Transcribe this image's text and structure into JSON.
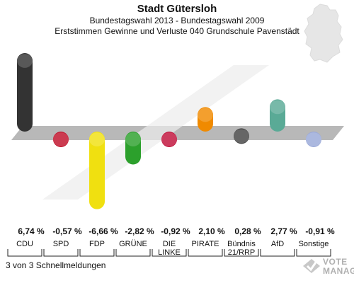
{
  "header": {
    "title": "Stadt Gütersloh",
    "subtitle1": "Bundestagswahl 2013 - Bundestagswahl 2009",
    "subtitle2": "Erststimmen Gewinne und Verluste 040 Grundschule Pavenstädt"
  },
  "footer": {
    "status": "3 von 3 Schnellmeldungen"
  },
  "logo": {
    "line1": "VOTE",
    "line2": "MANAGER"
  },
  "chart_data": {
    "type": "bar",
    "title": "Erststimmen Gewinne und Verluste 040 Grundschule Pavenstädt",
    "categories": [
      "CDU",
      "SPD",
      "FDP",
      "GRÜNE",
      "DIE LINKE",
      "PIRATE",
      "Bündnis 21/RRP",
      "AfD",
      "Sonstige"
    ],
    "category_lines": [
      [
        "CDU"
      ],
      [
        "SPD"
      ],
      [
        "FDP"
      ],
      [
        "GRÜNE"
      ],
      [
        "DIE",
        "LINKE"
      ],
      [
        "PIRATE"
      ],
      [
        "Bündnis",
        "21/RRP"
      ],
      [
        "AfD"
      ],
      [
        "Sonstige"
      ]
    ],
    "values": [
      6.74,
      -0.57,
      -6.66,
      -2.82,
      -0.92,
      2.1,
      0.28,
      2.77,
      -0.91
    ],
    "value_labels": [
      "6,74 %",
      "-0,57 %",
      "-6,66 %",
      "-2,82 %",
      "-0,92 %",
      "2,10 %",
      "0,28 %",
      "2,77 %",
      "-0,91 %"
    ],
    "colors": [
      "#333333",
      "#c0102a",
      "#f0e010",
      "#2ca02c",
      "#c0103a",
      "#f08a00",
      "#444444",
      "#5aaa96",
      "#99a8d8"
    ],
    "ylim": [
      -7,
      7
    ]
  }
}
